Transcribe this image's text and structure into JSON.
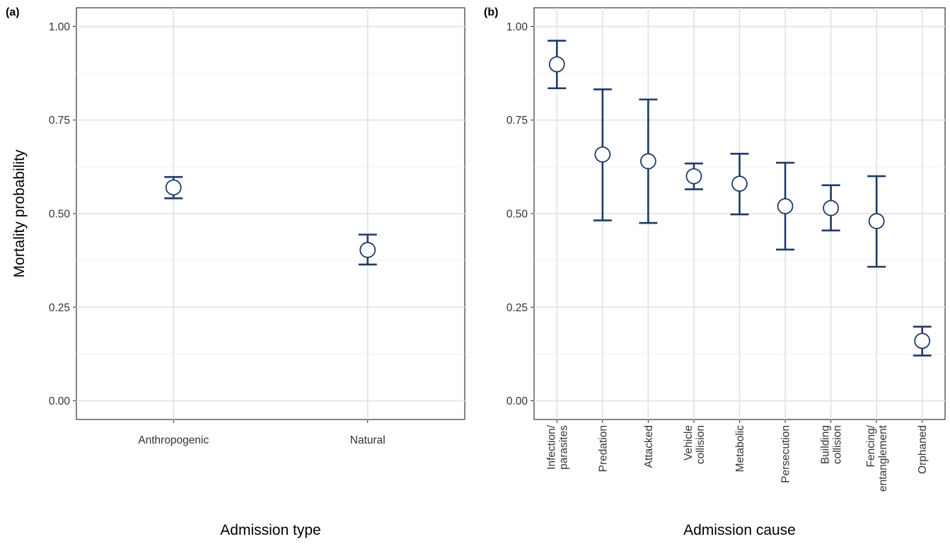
{
  "style": {
    "series_color": "#1f3a68"
  },
  "chart_data": [
    {
      "tag": "(a)",
      "type": "scatter",
      "error_bars": true,
      "categories": [
        "Anthropogenic",
        "Natural"
      ],
      "series": [
        {
          "values": [
            0.57,
            0.403
          ],
          "lower": [
            0.541,
            0.364
          ],
          "upper": [
            0.598,
            0.444
          ]
        }
      ],
      "xlabel": "Admission type",
      "ylabel": "Mortality probability",
      "ylim": [
        -0.05,
        1.05
      ],
      "yticks": [
        0.0,
        0.25,
        0.5,
        0.75,
        1.0
      ],
      "ytick_labels": [
        "0.00",
        "0.25",
        "0.50",
        "0.75",
        "1.00"
      ],
      "grid": true,
      "legend": "none"
    },
    {
      "tag": "(b)",
      "type": "scatter",
      "error_bars": true,
      "categories": [
        "Infection/\nparasites",
        "Predation",
        "Attacked",
        "Vehicle\ncollision",
        "Metabolic",
        "Persecution",
        "Building\ncollision",
        "Fencing/\nentanglement",
        "Orphaned"
      ],
      "series": [
        {
          "values": [
            0.899,
            0.658,
            0.64,
            0.6,
            0.58,
            0.52,
            0.515,
            0.48,
            0.16
          ],
          "lower": [
            0.835,
            0.482,
            0.475,
            0.565,
            0.498,
            0.404,
            0.455,
            0.358,
            0.121
          ],
          "upper": [
            0.962,
            0.832,
            0.805,
            0.634,
            0.66,
            0.636,
            0.576,
            0.6,
            0.198
          ]
        }
      ],
      "xlabel": "Admission cause",
      "ylabel": "",
      "ylim": [
        -0.05,
        1.05
      ],
      "yticks": [
        0.0,
        0.25,
        0.5,
        0.75,
        1.0
      ],
      "ytick_labels": [
        "0.00",
        "0.25",
        "0.50",
        "0.75",
        "1.00"
      ],
      "grid": true,
      "legend": "none"
    }
  ]
}
